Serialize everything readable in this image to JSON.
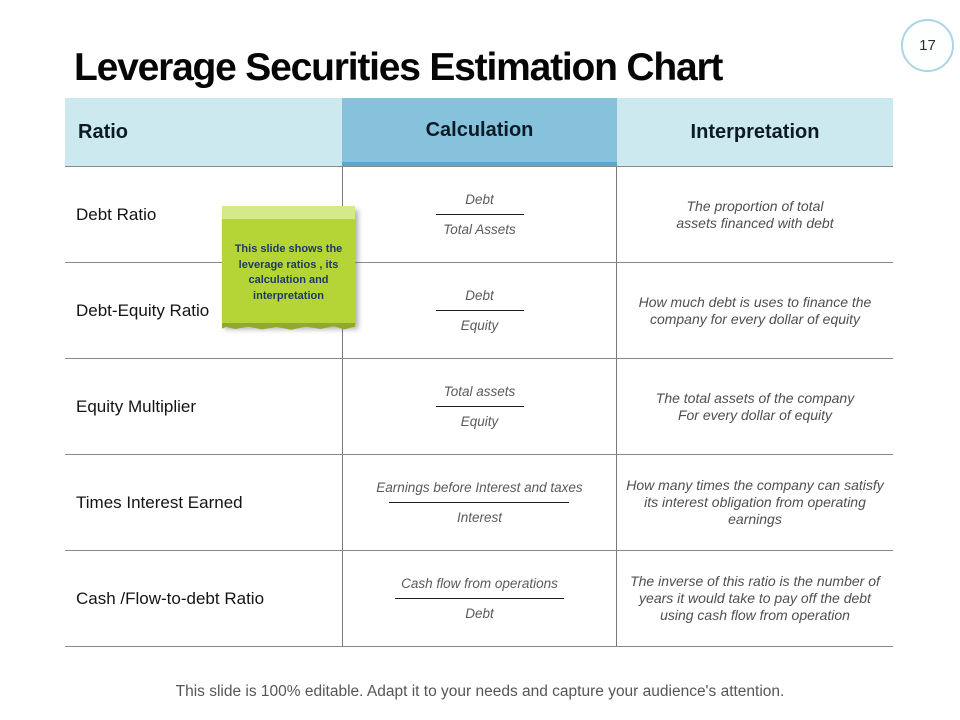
{
  "slide": {
    "title": "Leverage Securities Estimation Chart",
    "page_number": "17",
    "footer": "This slide is 100% editable. Adapt it to your needs and capture your audience's attention."
  },
  "colors": {
    "header_light_blue": "#cde9f0",
    "header_medium_blue": "#86c2dc",
    "header_medium_blue_edge": "#5ea6c8",
    "note_green": "#b5d435",
    "note_green_light": "#d4e98c",
    "note_green_dark": "#90a92e",
    "note_text_navy": "#1d3a63",
    "page_badge_stroke": "#a9d6e4",
    "grid_line_gray": "#8a8a8a"
  },
  "note": {
    "lines": [
      "This slide shows the",
      "leverage ratios , its",
      "calculation and",
      "interpretation"
    ]
  },
  "table": {
    "headers": [
      "Ratio",
      "Calculation",
      "Interpretation"
    ],
    "rows": [
      {
        "ratio": "Debt Ratio",
        "numerator": "Debt",
        "denominator": "Total Assets",
        "interpretation": [
          "The proportion of total",
          "assets financed with debt"
        ]
      },
      {
        "ratio": "Debt-Equity Ratio",
        "numerator": "Debt",
        "denominator": "Equity",
        "interpretation": [
          "How much debt is uses to finance the",
          "company for every dollar of equity"
        ]
      },
      {
        "ratio": "Equity Multiplier",
        "numerator": "Total assets",
        "denominator": "Equity",
        "interpretation": [
          "The total assets of the company",
          "For every dollar of equity"
        ]
      },
      {
        "ratio": "Times Interest Earned",
        "numerator": "Earnings before Interest and taxes",
        "denominator": "Interest",
        "interpretation": [
          "How many times the company can satisfy",
          "its interest obligation from operating",
          "earnings"
        ]
      },
      {
        "ratio": "Cash /Flow-to-debt Ratio",
        "numerator": "Cash flow from operations",
        "denominator": "Debt",
        "interpretation": [
          "The inverse of this ratio is the number of",
          "years it would take to pay off the debt",
          "using cash flow from operation"
        ]
      }
    ]
  }
}
